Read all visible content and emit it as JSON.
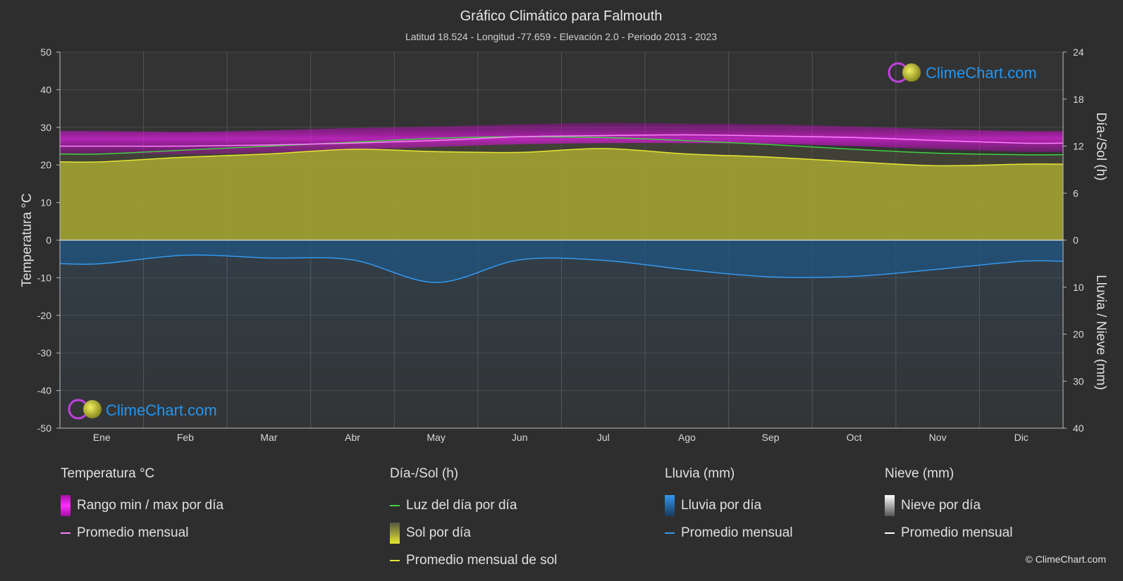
{
  "title": "Gráfico Climático para Falmouth",
  "subtitle": "Latitud 18.524 - Longitud -77.659 - Elevación 2.0 - Periodo 2013 - 2023",
  "watermark": "ClimeChart.com",
  "copyright": "© ClimeChart.com",
  "colors": {
    "background": "#2e2e2e",
    "temp_band": "#d020d0",
    "temp_avg": "#ff80ff",
    "daylight": "#40d040",
    "sun_fill": "#a8a832",
    "sun_avg": "#e6e632",
    "rain_fill": "#2a6fa8",
    "rain_avg": "#3399ee",
    "snow_avg": "#ffffff",
    "watermark": "#2196f3"
  },
  "legend": {
    "temperature": {
      "heading": "Temperatura °C",
      "items": [
        "Rango min / max por día",
        "Promedio mensual"
      ]
    },
    "sun": {
      "heading": "Día-/Sol (h)",
      "items": [
        "Luz del día por día",
        "Sol por día",
        "Promedio mensual de sol"
      ]
    },
    "rain": {
      "heading": "Lluvia (mm)",
      "items": [
        "Lluvia por día",
        "Promedio mensual"
      ]
    },
    "snow": {
      "heading": "Nieve (mm)",
      "items": [
        "Nieve por día",
        "Promedio mensual"
      ]
    }
  },
  "chart_data": {
    "type": "area",
    "categories": [
      "Ene",
      "Feb",
      "Mar",
      "Abr",
      "May",
      "Jun",
      "Jul",
      "Ago",
      "Sep",
      "Oct",
      "Nov",
      "Dic"
    ],
    "y_left": {
      "label": "Temperatura °C",
      "range": [
        -50,
        50
      ],
      "ticks": [
        50,
        40,
        30,
        20,
        10,
        0,
        -10,
        -20,
        -30,
        -40,
        -50
      ]
    },
    "y_right_top": {
      "label": "Día-/Sol (h)",
      "range": [
        0,
        24
      ],
      "ticks": [
        24,
        18,
        12,
        6,
        0
      ]
    },
    "y_right_bottom": {
      "label": "Lluvia / Nieve (mm)",
      "range": [
        0,
        40
      ],
      "ticks": [
        0,
        10,
        20,
        30,
        40
      ]
    },
    "grid": true,
    "series": [
      {
        "name": "Rango min / max por día",
        "axis": "temperature",
        "min": [
          23.0,
          22.8,
          23.2,
          24.0,
          24.8,
          25.5,
          25.8,
          25.8,
          25.6,
          25.0,
          24.2,
          23.5
        ],
        "max": [
          29.0,
          28.8,
          29.2,
          29.8,
          30.2,
          30.8,
          31.2,
          31.0,
          30.8,
          30.2,
          29.5,
          29.0
        ]
      },
      {
        "name": "Promedio mensual",
        "axis": "temperature",
        "values": [
          25.0,
          25.0,
          25.3,
          25.8,
          26.5,
          27.5,
          27.8,
          28.0,
          27.7,
          27.3,
          26.5,
          25.8
        ]
      },
      {
        "name": "Luz del día por día",
        "axis": "sun_hours",
        "values": [
          11.0,
          11.5,
          12.0,
          12.5,
          13.0,
          13.2,
          13.1,
          12.7,
          12.2,
          11.6,
          11.1,
          10.9
        ]
      },
      {
        "name": "Promedio mensual de sol",
        "axis": "sun_hours",
        "values": [
          10.0,
          10.6,
          11.0,
          11.6,
          11.3,
          11.2,
          11.7,
          11.0,
          10.6,
          10.0,
          9.5,
          9.7
        ]
      },
      {
        "name": "Promedio mensual",
        "axis": "rain_mm",
        "values": [
          5.0,
          3.2,
          3.8,
          4.2,
          9.0,
          4.2,
          4.3,
          6.3,
          7.8,
          7.7,
          6.2,
          4.5
        ]
      },
      {
        "name": "Promedio mensual",
        "axis": "snow_mm",
        "values": [
          0,
          0,
          0,
          0,
          0,
          0,
          0,
          0,
          0,
          0,
          0,
          0
        ]
      }
    ]
  }
}
